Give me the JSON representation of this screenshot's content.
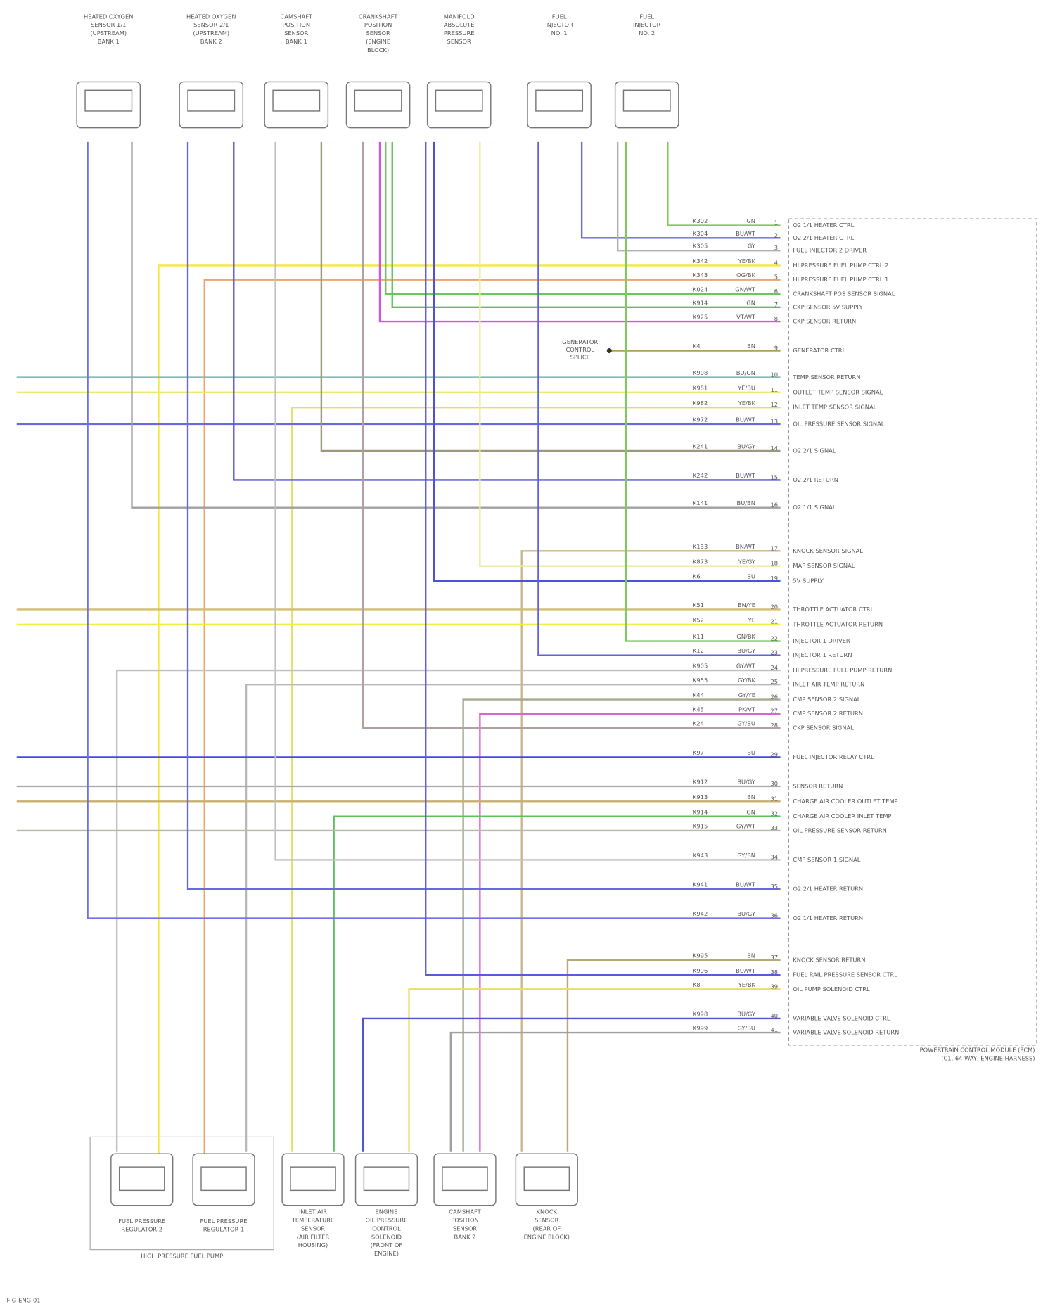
{
  "top_components": [
    {
      "lines": [
        "HEATED OXYGEN",
        "SENSOR 1/1",
        "(UPSTREAM)",
        "BANK 1"
      ]
    },
    {
      "lines": [
        "HEATED OXYGEN",
        "SENSOR 2/1",
        "(UPSTREAM)",
        "BANK 2"
      ]
    },
    {
      "lines": [
        "CAMSHAFT",
        "POSITION",
        "SENSOR",
        "BANK 1"
      ]
    },
    {
      "lines": [
        "CRANKSHAFT",
        "POSITION",
        "SENSOR",
        "(ENGINE",
        "BLOCK)"
      ]
    },
    {
      "lines": [
        "MANIFOLD",
        "ABSOLUTE",
        "PRESSURE",
        "SENSOR"
      ]
    },
    {
      "lines": [
        "FUEL",
        "INJECTOR",
        "NO. 1"
      ]
    },
    {
      "lines": [
        "FUEL",
        "INJECTOR",
        "NO. 2"
      ]
    }
  ],
  "bottom_components": [
    {
      "lines": [
        "FUEL PRESSURE",
        "REGULATOR 2"
      ]
    },
    {
      "lines": [
        "FUEL PRESSURE",
        "REGULATOR 1"
      ]
    },
    {
      "lines": [
        "INLET AIR",
        "TEMPERATURE",
        "SENSOR",
        "(AIR FILTER",
        "HOUSING)"
      ]
    },
    {
      "lines": [
        "ENGINE",
        "OIL PRESSURE",
        "CONTROL",
        "SOLENOID",
        "(FRONT OF",
        "ENGINE)"
      ]
    },
    {
      "lines": [
        "CAMSHAFT",
        "POSITION",
        "SENSOR",
        "BANK 2"
      ]
    },
    {
      "lines": [
        "KNOCK",
        "SENSOR",
        "(REAR OF",
        "ENGINE BLOCK)"
      ]
    }
  ],
  "pump_group": "HIGH PRESSURE FUEL PUMP",
  "pcm": {
    "label": [
      "POWERTRAIN CONTROL MODULE (PCM)",
      "(C1, 64-WAY, ENGINE HARNESS)"
    ],
    "pins": [
      {
        "pin": "1",
        "circuit": "K302",
        "wire": "GN",
        "function": "O2 1/1 HEATER CTRL",
        "color": "#7ecb5a"
      },
      {
        "pin": "2",
        "circuit": "K304",
        "wire": "BU/WT",
        "function": "O2 2/1 HEATER CTRL",
        "color": "#6a6ae0"
      },
      {
        "pin": "3",
        "circuit": "K305",
        "wire": "GY",
        "function": "FUEL INJECTOR 2 DRIVER",
        "color": "#b0b0b0"
      },
      {
        "pin": "4",
        "circuit": "K342",
        "wire": "YE/BK",
        "function": "HI PRESSURE FUEL PUMP CTRL 2",
        "color": "#f2ea3c"
      },
      {
        "pin": "5",
        "circuit": "K343",
        "wire": "OG/BK",
        "function": "HI PRESSURE FUEL PUMP CTRL 1",
        "color": "#f4a16a"
      },
      {
        "pin": "6",
        "circuit": "K024",
        "wire": "GN/WT",
        "function": "CRANKSHAFT POS SENSOR SIGNAL",
        "color": "#6ac85a"
      },
      {
        "pin": "7",
        "circuit": "K914",
        "wire": "GN",
        "function": "CKP SENSOR 5V SUPPLY",
        "color": "#55c455"
      },
      {
        "pin": "8",
        "circuit": "K925",
        "wire": "VT/WT",
        "function": "CKP SENSOR RETURN",
        "color": "#c95ae0"
      },
      {
        "pin": "9",
        "circuit": "K4",
        "wire": "BN",
        "function": "GENERATOR CTRL",
        "color": "#a8a25a"
      },
      {
        "pin": "10",
        "circuit": "K908",
        "wire": "BU/GN",
        "function": "TEMP SENSOR RETURN",
        "color": "#88b8b0"
      },
      {
        "pin": "11",
        "circuit": "K981",
        "wire": "YE/BU",
        "function": "OUTLET TEMP SENSOR SIGNAL",
        "color": "#eaea70"
      },
      {
        "pin": "12",
        "circuit": "K982",
        "wire": "YE/BK",
        "function": "INLET TEMP SENSOR SIGNAL",
        "color": "#e0e060"
      },
      {
        "pin": "13",
        "circuit": "K972",
        "wire": "BU/WT",
        "function": "OIL PRESSURE SENSOR SIGNAL",
        "color": "#6a6ae0"
      },
      {
        "pin": "14",
        "circuit": "K241",
        "wire": "BU/GY",
        "function": "O2 2/1 SIGNAL",
        "color": "#9a9a7a"
      },
      {
        "pin": "15",
        "circuit": "K242",
        "wire": "BU/WT",
        "function": "O2 2/1 RETURN",
        "color": "#5858d8"
      },
      {
        "pin": "16",
        "circuit": "K141",
        "wire": "BU/BN",
        "function": "O2 1/1 SIGNAL",
        "color": "#a0a0a0"
      },
      {
        "pin": "17",
        "circuit": "K133",
        "wire": "BN/WT",
        "function": "KNOCK SENSOR SIGNAL",
        "color": "#c8b888"
      },
      {
        "pin": "18",
        "circuit": "K873",
        "wire": "YE/GY",
        "function": "MAP SENSOR SIGNAL",
        "color": "#eeea9a"
      },
      {
        "pin": "19",
        "circuit": "K6",
        "wire": "BU",
        "function": "5V SUPPLY",
        "color": "#5050e0"
      },
      {
        "pin": "20",
        "circuit": "K51",
        "wire": "BN/YE",
        "function": "THROTTLE ACTUATOR CTRL",
        "color": "#d0c070"
      },
      {
        "pin": "21",
        "circuit": "K52",
        "wire": "YE",
        "function": "THROTTLE ACTUATOR RETURN",
        "color": "#f0f040"
      },
      {
        "pin": "22",
        "circuit": "K11",
        "wire": "GN/BK",
        "function": "INJECTOR 1 DRIVER",
        "color": "#7ecb5a"
      },
      {
        "pin": "23",
        "circuit": "K12",
        "wire": "BU/GY",
        "function": "INJECTOR 1 RETURN",
        "color": "#6060e0"
      },
      {
        "pin": "24",
        "circuit": "K905",
        "wire": "GY/WT",
        "function": "HI PRESSURE FUEL PUMP RETURN",
        "color": "#c0c0c0"
      },
      {
        "pin": "25",
        "circuit": "K955",
        "wire": "GY/BK",
        "function": "INLET AIR TEMP RETURN",
        "color": "#b8b8b8"
      },
      {
        "pin": "26",
        "circuit": "K44",
        "wire": "GY/YE",
        "function": "CMP SENSOR 2 SIGNAL",
        "color": "#a8a890"
      },
      {
        "pin": "27",
        "circuit": "K45",
        "wire": "PK/VT",
        "function": "CMP SENSOR 2 RETURN",
        "color": "#e060d8"
      },
      {
        "pin": "28",
        "circuit": "K24",
        "wire": "GY/BU",
        "function": "CKP SENSOR SIGNAL",
        "color": "#b0a0a0"
      },
      {
        "pin": "29",
        "circuit": "K97",
        "wire": "BU",
        "function": "FUEL INJECTOR RELAY CTRL",
        "color": "#4848e0"
      },
      {
        "pin": "30",
        "circuit": "K912",
        "wire": "BU/GY",
        "function": "SENSOR RETURN",
        "color": "#a8a8a8"
      },
      {
        "pin": "31",
        "circuit": "K913",
        "wire": "BN",
        "function": "CHARGE AIR COOLER OUTLET TEMP",
        "color": "#c8b070"
      },
      {
        "pin": "32",
        "circuit": "K914",
        "wire": "GN",
        "function": "CHARGE AIR COOLER INLET TEMP",
        "color": "#60c060"
      },
      {
        "pin": "33",
        "circuit": "K915",
        "wire": "GY/WT",
        "function": "OIL PRESSURE SENSOR RETURN",
        "color": "#b8b8a8"
      },
      {
        "pin": "34",
        "circuit": "K943",
        "wire": "GY/BN",
        "function": "CMP SENSOR 1 SIGNAL",
        "color": "#c0c0c0"
      },
      {
        "pin": "35",
        "circuit": "K941",
        "wire": "BU/WT",
        "function": "O2 2/1 HEATER RETURN",
        "color": "#6a6ae0"
      },
      {
        "pin": "36",
        "circuit": "K942",
        "wire": "BU/GY",
        "function": "O2 1/1 HEATER RETURN",
        "color": "#7070e0"
      },
      {
        "pin": "37",
        "circuit": "K995",
        "wire": "BN",
        "function": "KNOCK SENSOR RETURN",
        "color": "#b8a878"
      },
      {
        "pin": "38",
        "circuit": "K996",
        "wire": "BU/WT",
        "function": "FUEL RAIL PRESSURE SENSOR CTRL",
        "color": "#5a5ae0"
      },
      {
        "pin": "39",
        "circuit": "K8",
        "wire": "YE/BK",
        "function": "OIL PUMP SOLENOID CTRL",
        "color": "#e8e060"
      },
      {
        "pin": "40",
        "circuit": "K998",
        "wire": "BU/GY",
        "function": "VARIABLE VALVE SOLENOID CTRL",
        "color": "#5050d8"
      },
      {
        "pin": "41",
        "circuit": "K999",
        "wire": "GY/BU",
        "function": "VARIABLE VALVE SOLENOID RETURN",
        "color": "#a0a0a0"
      }
    ]
  },
  "splice": [
    "GENERATOR",
    "CONTROL",
    "SPLICE"
  ],
  "footer": "FIG-ENG-01"
}
